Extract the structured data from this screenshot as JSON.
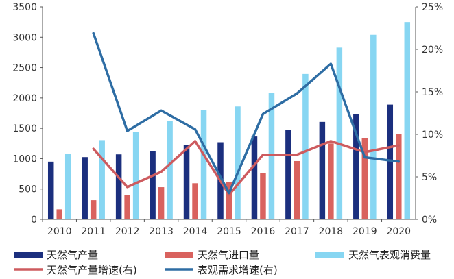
{
  "chart_data": {
    "type": "bar",
    "categories": [
      "2010",
      "2011",
      "2012",
      "2013",
      "2014",
      "2015",
      "2016",
      "2017",
      "2018",
      "2019",
      "2020"
    ],
    "series": [
      {
        "name": "天然气产量",
        "kind": "bar",
        "axis": "left",
        "color": "#1b2f7e",
        "values": [
          950,
          1025,
          1070,
          1120,
          1230,
          1270,
          1365,
          1475,
          1605,
          1730,
          1890
        ]
      },
      {
        "name": "天然气进口量",
        "kind": "bar",
        "axis": "left",
        "color": "#d9625e",
        "values": [
          165,
          315,
          405,
          530,
          595,
          620,
          760,
          960,
          1250,
          1335,
          1405
        ]
      },
      {
        "name": "天然气表观消费量",
        "kind": "bar",
        "axis": "left",
        "color": "#87d6f2",
        "values": [
          1075,
          1305,
          1440,
          1625,
          1800,
          1860,
          2080,
          2395,
          2830,
          3040,
          3250
        ]
      },
      {
        "name": "天然气产量增速(右)",
        "kind": "line",
        "axis": "right",
        "color": "#cd5b5f",
        "values": [
          null,
          8.3,
          3.8,
          5.6,
          9.2,
          2.9,
          7.6,
          7.6,
          9.2,
          7.9,
          8.7
        ]
      },
      {
        "name": "表观需求增速(右)",
        "kind": "line",
        "axis": "right",
        "color": "#2e6da4",
        "values": [
          null,
          21.9,
          10.4,
          12.8,
          10.6,
          3.1,
          12.4,
          14.8,
          18.3,
          7.3,
          6.8
        ]
      }
    ],
    "y_left": {
      "min": 0,
      "max": 3500,
      "ticks": [
        "0",
        "500",
        "1000",
        "1500",
        "2000",
        "2500",
        "3000",
        "3500"
      ]
    },
    "y_right": {
      "min": 0,
      "max": 25,
      "ticks": [
        "0%",
        "5%",
        "10%",
        "15%",
        "20%",
        "25%"
      ]
    },
    "legend_position": "bottom"
  }
}
